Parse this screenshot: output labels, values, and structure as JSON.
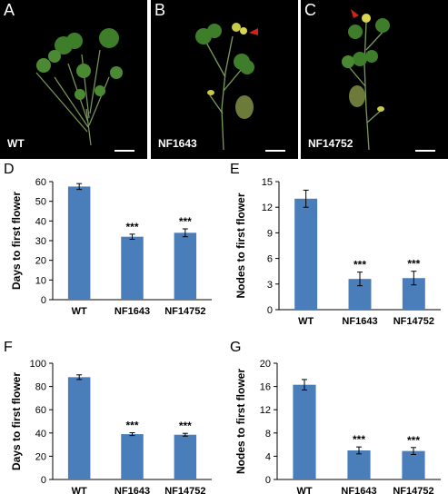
{
  "photos": [
    {
      "letter": "A",
      "genotype": "WT"
    },
    {
      "letter": "B",
      "genotype": "NF1643"
    },
    {
      "letter": "C",
      "genotype": "NF14752"
    }
  ],
  "chart_data": [
    {
      "panel": "D",
      "type": "bar",
      "categories": [
        "WT",
        "NF1643",
        "NF14752"
      ],
      "values": [
        57.5,
        32,
        34
      ],
      "errors": [
        1.5,
        1.3,
        2.0
      ],
      "annotations": [
        "",
        "***",
        "***"
      ],
      "ylabel": "Days to first flower",
      "xlabel": "",
      "ylim": [
        0,
        60
      ],
      "yticks": [
        0,
        10,
        20,
        30,
        40,
        50,
        60
      ],
      "color": "#4A7EBB"
    },
    {
      "panel": "E",
      "type": "bar",
      "categories": [
        "WT",
        "NF1643",
        "NF14752"
      ],
      "values": [
        13.0,
        3.6,
        3.7
      ],
      "errors": [
        1.0,
        0.8,
        0.8
      ],
      "annotations": [
        "",
        "***",
        "***"
      ],
      "ylabel": "Nodes to first flower",
      "xlabel": "",
      "ylim": [
        0,
        15
      ],
      "yticks": [
        0,
        3,
        6,
        9,
        12,
        15
      ],
      "color": "#4A7EBB"
    },
    {
      "panel": "F",
      "type": "bar",
      "categories": [
        "WT",
        "NF1643",
        "NF14752"
      ],
      "values": [
        88,
        39,
        38.5
      ],
      "errors": [
        2.0,
        1.2,
        1.2
      ],
      "annotations": [
        "",
        "***",
        "***"
      ],
      "ylabel": "Days to first flower",
      "xlabel": "",
      "ylim": [
        0,
        100
      ],
      "yticks": [
        0,
        20,
        40,
        60,
        80,
        100
      ],
      "color": "#4A7EBB"
    },
    {
      "panel": "G",
      "type": "bar",
      "categories": [
        "WT",
        "NF1643",
        "NF14752"
      ],
      "values": [
        16.3,
        5.0,
        4.9
      ],
      "errors": [
        0.9,
        0.6,
        0.6
      ],
      "annotations": [
        "",
        "***",
        "***"
      ],
      "ylabel": "Nodes to first flower",
      "xlabel": "",
      "ylim": [
        0,
        20
      ],
      "yticks": [
        0,
        4,
        8,
        12,
        16,
        20
      ],
      "color": "#4A7EBB"
    }
  ]
}
